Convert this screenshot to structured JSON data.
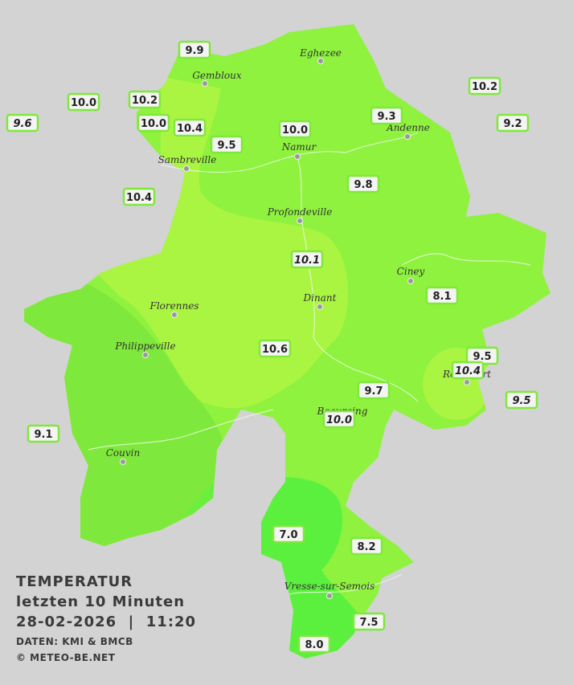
{
  "title": {
    "heading": "TEMPERATUR",
    "period": "letzten 10 Minuten",
    "datetime": "28-02-2026  |  11:20",
    "source": "DATEN: KMI & BMCB",
    "copyright": "© METEO-BE.NET"
  },
  "cities": [
    "Eghezee",
    "Gembloux",
    "Andenne",
    "Namur",
    "Sambreville",
    "Profondeville",
    "Ciney",
    "Dinant",
    "Florennes",
    "Philippeville",
    "Rochefort",
    "Beauraing",
    "Couvin",
    "Vresse-sur-Semois"
  ],
  "stations": [
    {
      "label": "9.9",
      "italic": false
    },
    {
      "label": "10.0",
      "italic": false
    },
    {
      "label": "10.2",
      "italic": false
    },
    {
      "label": "9.6",
      "italic": true
    },
    {
      "label": "10.0",
      "italic": false
    },
    {
      "label": "10.4",
      "italic": false
    },
    {
      "label": "9.5",
      "italic": false
    },
    {
      "label": "10.0",
      "italic": false
    },
    {
      "label": "9.3",
      "italic": false
    },
    {
      "label": "10.2",
      "italic": false
    },
    {
      "label": "9.2",
      "italic": false
    },
    {
      "label": "9.8",
      "italic": false
    },
    {
      "label": "10.4",
      "italic": false
    },
    {
      "label": "10.1",
      "italic": true
    },
    {
      "label": "8.1",
      "italic": false
    },
    {
      "label": "10.6",
      "italic": false
    },
    {
      "label": "9.5",
      "italic": false
    },
    {
      "label": "10.4",
      "italic": true
    },
    {
      "label": "9.7",
      "italic": false
    },
    {
      "label": "9.5",
      "italic": true
    },
    {
      "label": "10.0",
      "italic": true
    },
    {
      "label": "9.1",
      "italic": false
    },
    {
      "label": "7.0",
      "italic": false
    },
    {
      "label": "8.2",
      "italic": false
    },
    {
      "label": "7.5",
      "italic": false
    },
    {
      "label": "8.0",
      "italic": false
    }
  ]
}
